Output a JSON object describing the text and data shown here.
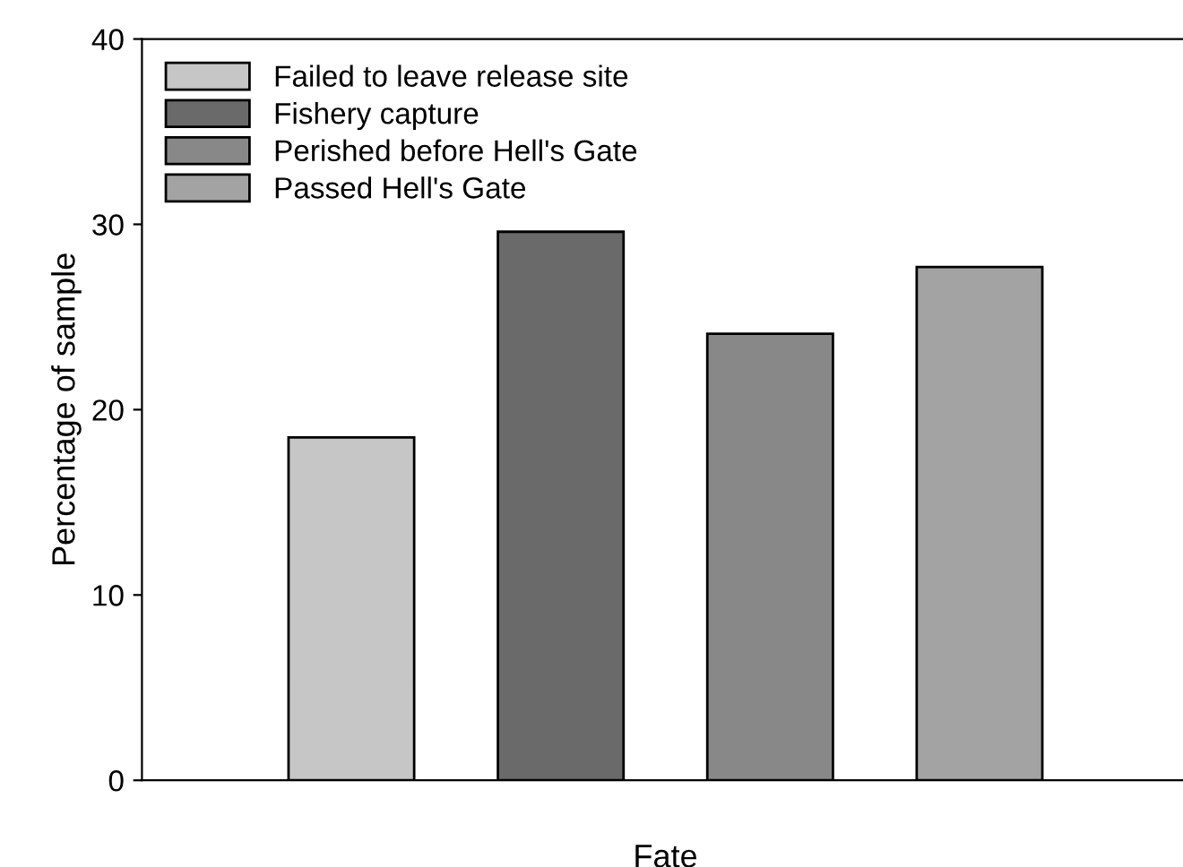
{
  "chart_data": {
    "type": "bar",
    "xlabel": "Fate",
    "ylabel": "Percentage of sample",
    "categories": [
      null,
      null,
      null,
      null
    ],
    "series": [
      {
        "name": "Failed to leave release site",
        "color": "#c6c6c6",
        "values": [
          18.5,
          null,
          null,
          null
        ]
      },
      {
        "name": "Fishery capture",
        "color": "#6a6a6a",
        "values": [
          null,
          29.6,
          null,
          null
        ]
      },
      {
        "name": "Perished before Hell's Gate",
        "color": "#888888",
        "values": [
          null,
          null,
          24.1,
          null
        ]
      },
      {
        "name": "Passed Hell's Gate",
        "color": "#a3a3a3",
        "values": [
          null,
          null,
          null,
          27.7
        ]
      }
    ],
    "ylim": [
      0,
      40
    ],
    "yticks": [
      0,
      10,
      20,
      30,
      40
    ],
    "grid": false,
    "legend": "top left"
  }
}
